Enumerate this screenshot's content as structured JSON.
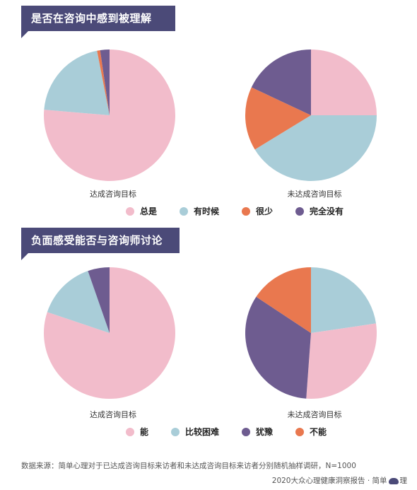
{
  "sections": [
    {
      "title": "是否在咨询中感到被理解"
    },
    {
      "title": "负面感受能否与咨询师讨论"
    }
  ],
  "colors": {
    "pink": "#f2bccb",
    "teal": "#a9cdd8",
    "orange": "#e9784f",
    "purple": "#6e5c90",
    "header": "#4b4a78"
  },
  "chart_data": [
    {
      "type": "pie",
      "group": "是否在咨询中感到被理解",
      "caption": "达成咨询目标",
      "labels": [
        "总是",
        "有时候",
        "很少",
        "完全没有"
      ],
      "values": [
        76.34,
        20.61,
        0.76,
        2.29
      ],
      "display": [
        "76.34%",
        "20.61%",
        "0.76%",
        "2.29%"
      ],
      "colors": [
        "#f2bccb",
        "#a9cdd8",
        "#e9784f",
        "#6e5c90"
      ]
    },
    {
      "type": "pie",
      "group": "是否在咨询中感到被理解",
      "caption": "未达成咨询目标",
      "labels": [
        "总是",
        "有时候",
        "很少",
        "完全没有"
      ],
      "values": [
        25.0,
        41.28,
        15.7,
        18.02
      ],
      "display": [
        "25.00%",
        "41.28%",
        "15.70%",
        "18.02%"
      ],
      "colors": [
        "#f2bccb",
        "#a9cdd8",
        "#e9784f",
        "#6e5c90"
      ]
    },
    {
      "type": "pie",
      "group": "负面感受能否与咨询师讨论",
      "caption": "达成咨询目标",
      "labels": [
        "能",
        "比较困难",
        "犹豫",
        "不能"
      ],
      "values": [
        80.15,
        14.5,
        5.34,
        0
      ],
      "display": [
        "80.15%",
        "14.50%",
        "5.34%",
        ""
      ],
      "colors": [
        "#f2bccb",
        "#a9cdd8",
        "#6e5c90",
        "#e9784f"
      ]
    },
    {
      "type": "pie",
      "group": "负面感受能否与咨询师讨论",
      "caption": "未达成咨询目标",
      "labels": [
        "比较困难",
        "能",
        "犹豫",
        "不能"
      ],
      "values": [
        22.67,
        28.49,
        33.14,
        15.7
      ],
      "display": [
        "22.67%",
        "28.49%",
        "33.14%",
        "15.70%"
      ],
      "colors": [
        "#a9cdd8",
        "#f2bccb",
        "#6e5c90",
        "#e9784f"
      ]
    }
  ],
  "legends": [
    {
      "items": [
        {
          "label": "总是",
          "color": "#f2bccb"
        },
        {
          "label": "有时候",
          "color": "#a9cdd8"
        },
        {
          "label": "很少",
          "color": "#e9784f"
        },
        {
          "label": "完全没有",
          "color": "#6e5c90"
        }
      ]
    },
    {
      "items": [
        {
          "label": "能",
          "color": "#f2bccb"
        },
        {
          "label": "比较困难",
          "color": "#a9cdd8"
        },
        {
          "label": "犹豫",
          "color": "#6e5c90"
        },
        {
          "label": "不能",
          "color": "#e9784f"
        }
      ]
    }
  ],
  "footer": {
    "source": "数据来源：简单心理对于已达成咨询目标来访者和未达成咨询目标来访者分别随机抽样调研，N=1000",
    "report": "2020大众心理健康洞察报告 · 简单",
    "brand_suffix": "理"
  }
}
